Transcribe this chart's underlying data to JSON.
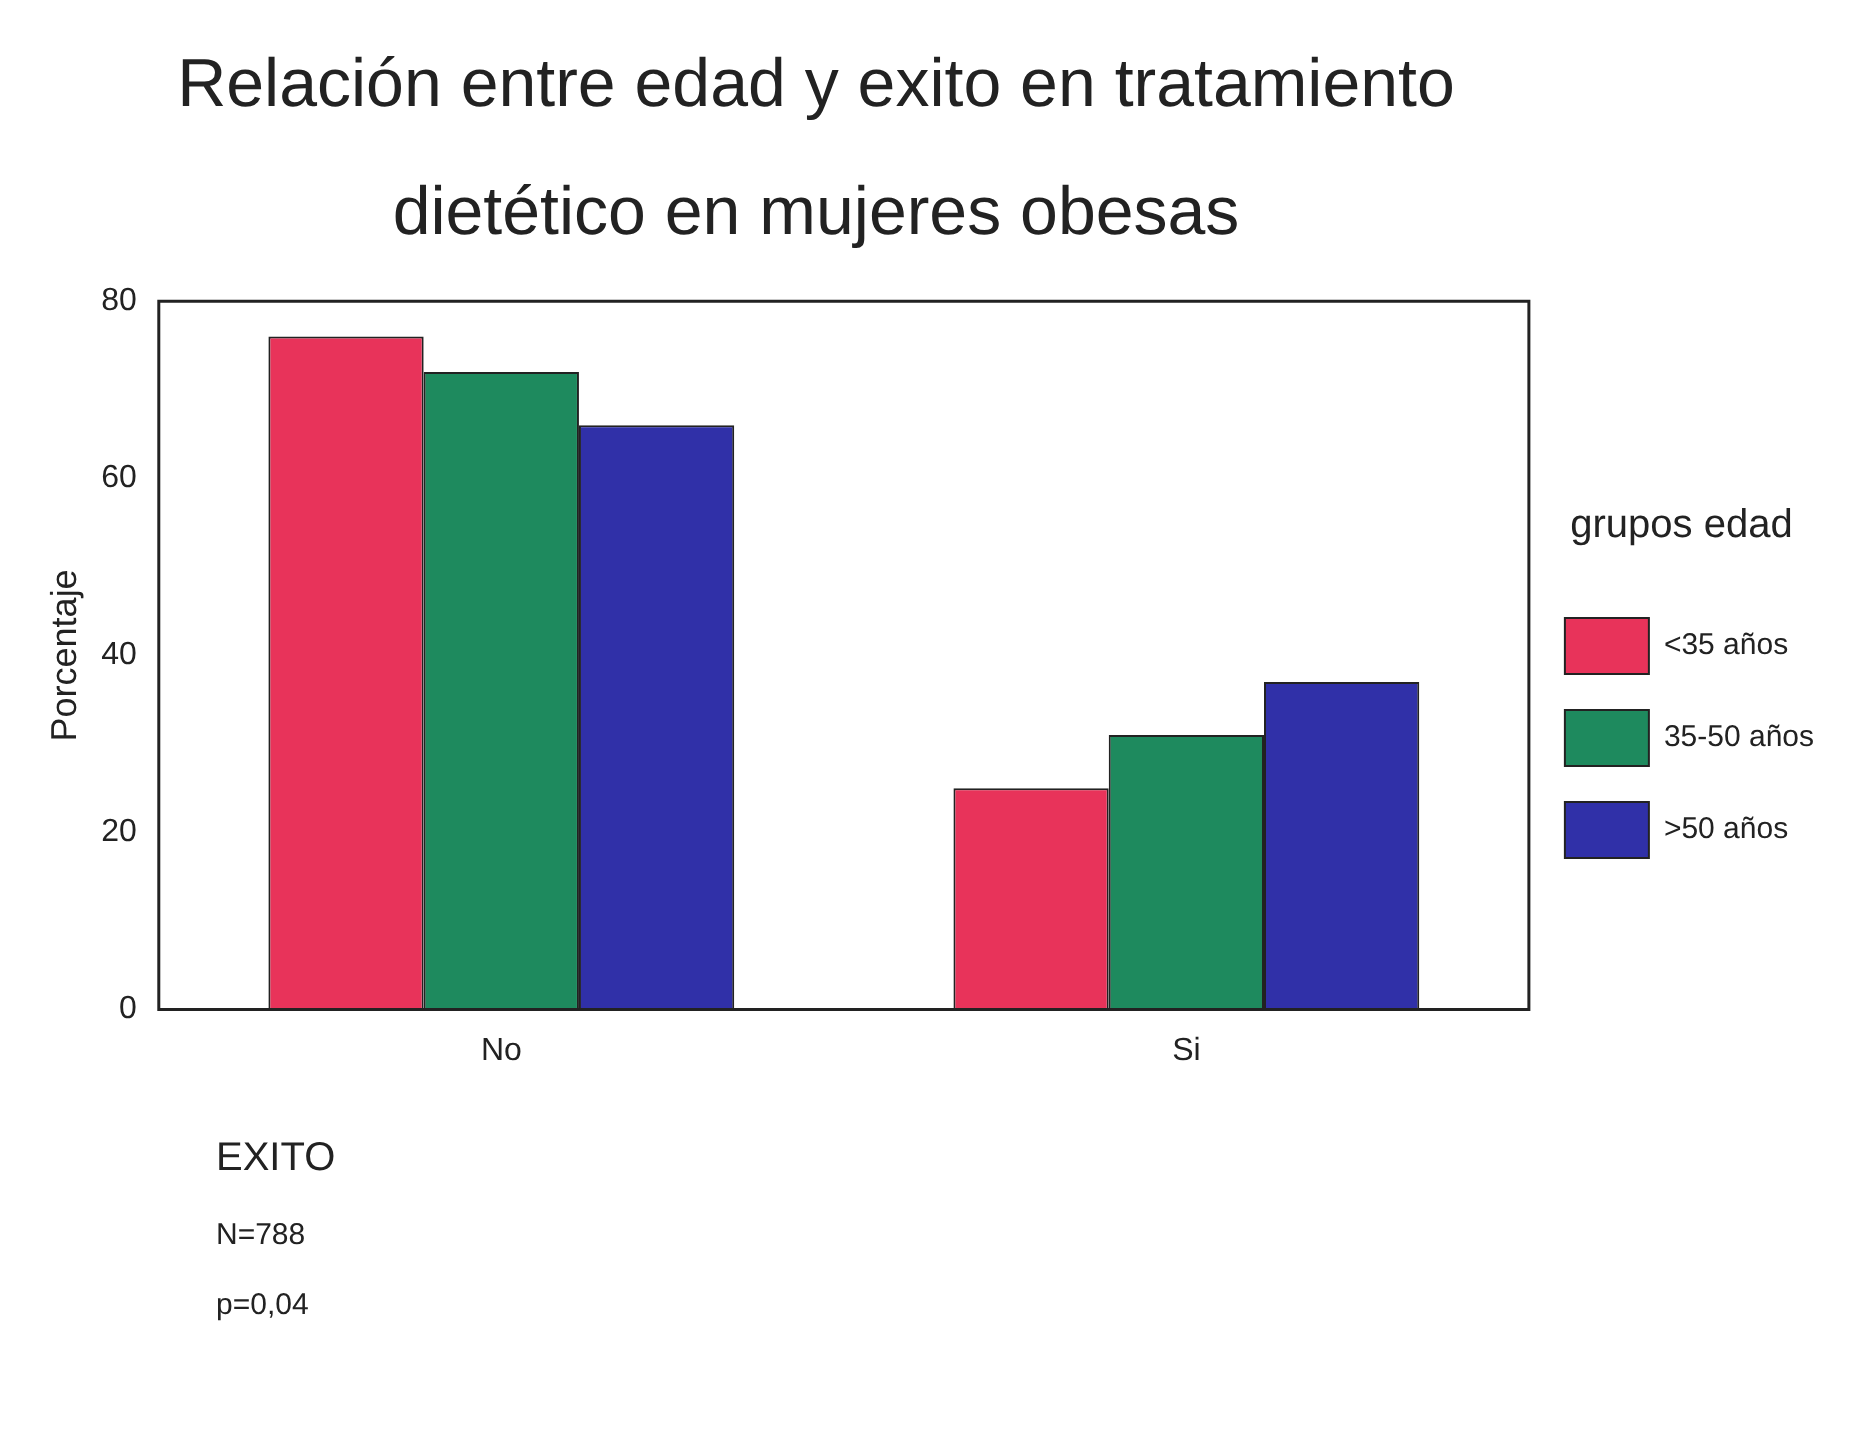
{
  "chart_data": {
    "type": "bar",
    "title": "Relación entre edad y exito en tratamiento dietético en mujeres obesas",
    "xlabel": "EXITO",
    "ylabel": "Porcentaje",
    "legend_title": "grupos edad",
    "categories": [
      "No",
      "Si"
    ],
    "series": [
      {
        "name": "<35 años",
        "color": "#e8335a",
        "values": [
          76,
          25
        ]
      },
      {
        "name": "35-50 años",
        "color": "#1e8a5e",
        "values": [
          72,
          31
        ]
      },
      {
        "name": ">50 años",
        "color": "#3030a8",
        "values": [
          66,
          37
        ]
      }
    ],
    "ylim": [
      0,
      80
    ],
    "yticks": [
      0,
      20,
      40,
      60,
      80
    ],
    "grid": false,
    "legend": "right",
    "annotations": [
      "N=788",
      "p=0,04"
    ]
  }
}
